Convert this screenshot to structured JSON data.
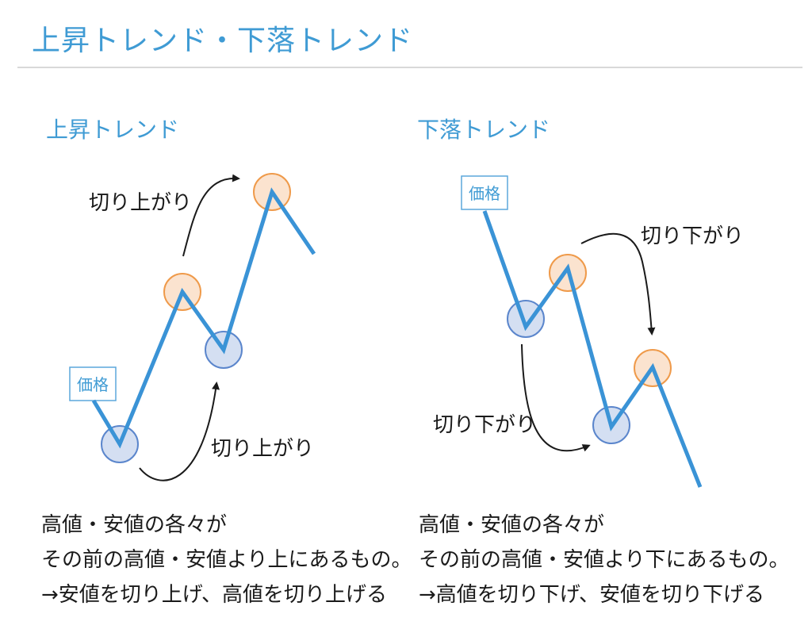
{
  "page": {
    "title": "上昇トレンド・下落トレンド"
  },
  "uptrend": {
    "title": "上昇トレンド",
    "price_tag": "価格",
    "arrow_label_top": "切り上がり",
    "arrow_label_bottom": "切り上がり",
    "description": [
      "高値・安値の各々が",
      "その前の高値・安値より上にあるもの。",
      "→安値を切り上げ、高値を切り上げる"
    ]
  },
  "downtrend": {
    "title": "下落トレンド",
    "price_tag": "価格",
    "arrow_label_top": "切り下がり",
    "arrow_label_bottom": "切り下がり",
    "description": [
      "高値・安値の各々が",
      "その前の高値・安値より下にあるもの。",
      "→高値を切り下げ、安値を切り下げる"
    ]
  },
  "colors": {
    "line": "#3a93d6",
    "title": "#3f9bd4",
    "high_fill": "#fbe3cf",
    "high_stroke": "#ef9a4a",
    "low_fill": "#d4dff2",
    "low_stroke": "#5b86cc"
  }
}
